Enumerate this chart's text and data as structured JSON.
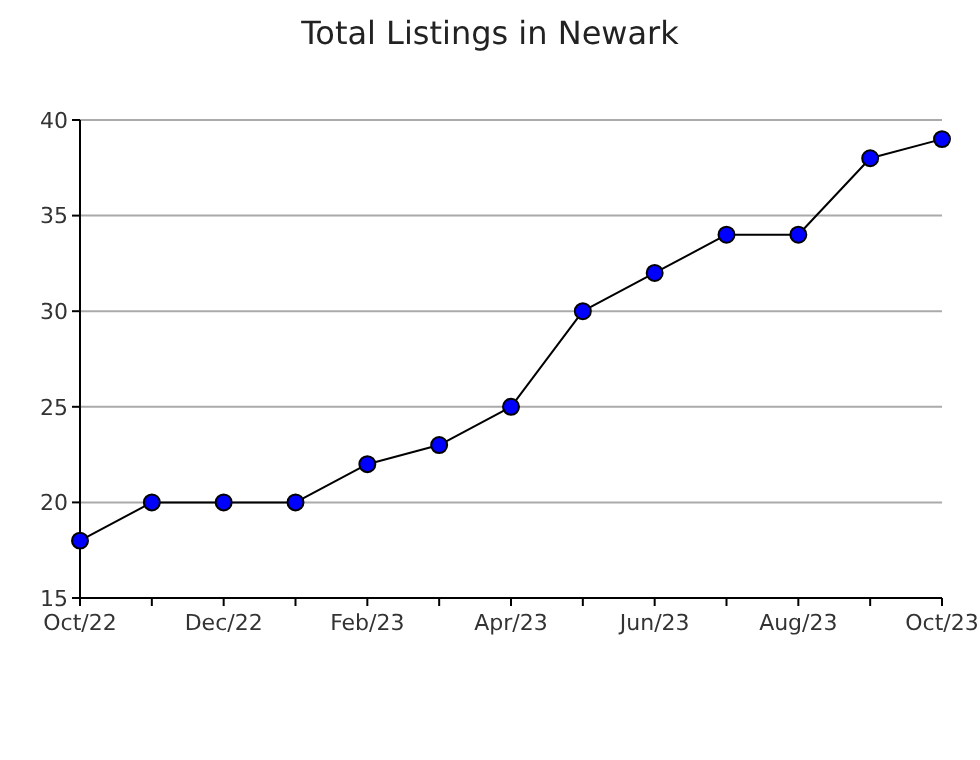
{
  "chart_data": {
    "type": "line",
    "title": "Total Listings in Newark",
    "categories": [
      "Oct/22",
      null,
      "Dec/22",
      null,
      "Feb/23",
      null,
      "Apr/23",
      null,
      "Jun/23",
      null,
      "Aug/23",
      null,
      "Oct/23"
    ],
    "series": [
      {
        "color": "#0000ff",
        "values": [
          18,
          20,
          20,
          20,
          22,
          23,
          25,
          30,
          32,
          34,
          34,
          38,
          39
        ]
      }
    ],
    "ylim": [
      15,
      40
    ],
    "yticks": [
      15,
      20,
      25,
      30,
      35,
      40
    ],
    "grid": "y",
    "marker": "circle"
  }
}
